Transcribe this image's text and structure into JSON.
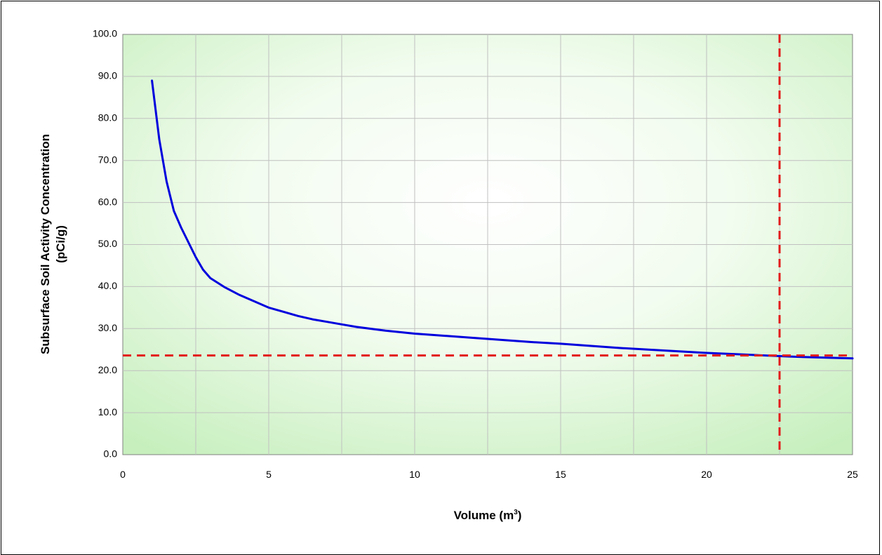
{
  "chart_data": {
    "type": "line",
    "title": "",
    "xlabel": "Volume (m",
    "xlabel_sup": "3",
    "xlabel_tail": ")",
    "ylabel_line1": "Subsurface Soil Activity Concentration",
    "ylabel_line2": "(pCi/g)",
    "xlim": [
      0,
      25
    ],
    "ylim": [
      0,
      100
    ],
    "x_ticks": [
      "0",
      "5",
      "10",
      "15",
      "20",
      "25"
    ],
    "x_tick_values": [
      0,
      5,
      10,
      15,
      20,
      25
    ],
    "y_ticks": [
      "0.0",
      "10.0",
      "20.0",
      "30.0",
      "40.0",
      "50.0",
      "60.0",
      "70.0",
      "80.0",
      "90.0",
      "100.0"
    ],
    "y_tick_values": [
      0,
      10,
      20,
      30,
      40,
      50,
      60,
      70,
      80,
      90,
      100
    ],
    "grid": true,
    "series": [
      {
        "color": "#0000dd",
        "x": [
          1.0,
          1.25,
          1.5,
          1.75,
          2.0,
          2.25,
          2.5,
          2.75,
          3.0,
          3.5,
          4.0,
          4.5,
          5.0,
          5.5,
          6.0,
          6.5,
          7.0,
          7.5,
          8.0,
          9.0,
          10.0,
          11.0,
          12.0,
          13.0,
          14.0,
          15.0,
          16.0,
          17.0,
          18.0,
          19.0,
          20.0,
          21.0,
          22.0,
          23.0,
          24.0,
          25.0
        ],
        "y": [
          89.0,
          75.0,
          65.0,
          58.0,
          54.0,
          50.5,
          47.0,
          44.0,
          42.0,
          39.8,
          38.0,
          36.5,
          35.0,
          34.0,
          33.0,
          32.2,
          31.6,
          31.0,
          30.4,
          29.5,
          28.8,
          28.3,
          27.8,
          27.3,
          26.8,
          26.4,
          25.9,
          25.4,
          25.0,
          24.6,
          24.2,
          23.9,
          23.6,
          23.3,
          23.1,
          22.9
        ]
      }
    ],
    "reference_lines": {
      "color": "#e31b1b",
      "horizontal_y": 23.6,
      "vertical_x": 22.5
    },
    "colors": {
      "plot_background_edge": "#c8f0c0",
      "plot_background_center": "#ffffff",
      "gridline": "#c0c0c0"
    }
  }
}
